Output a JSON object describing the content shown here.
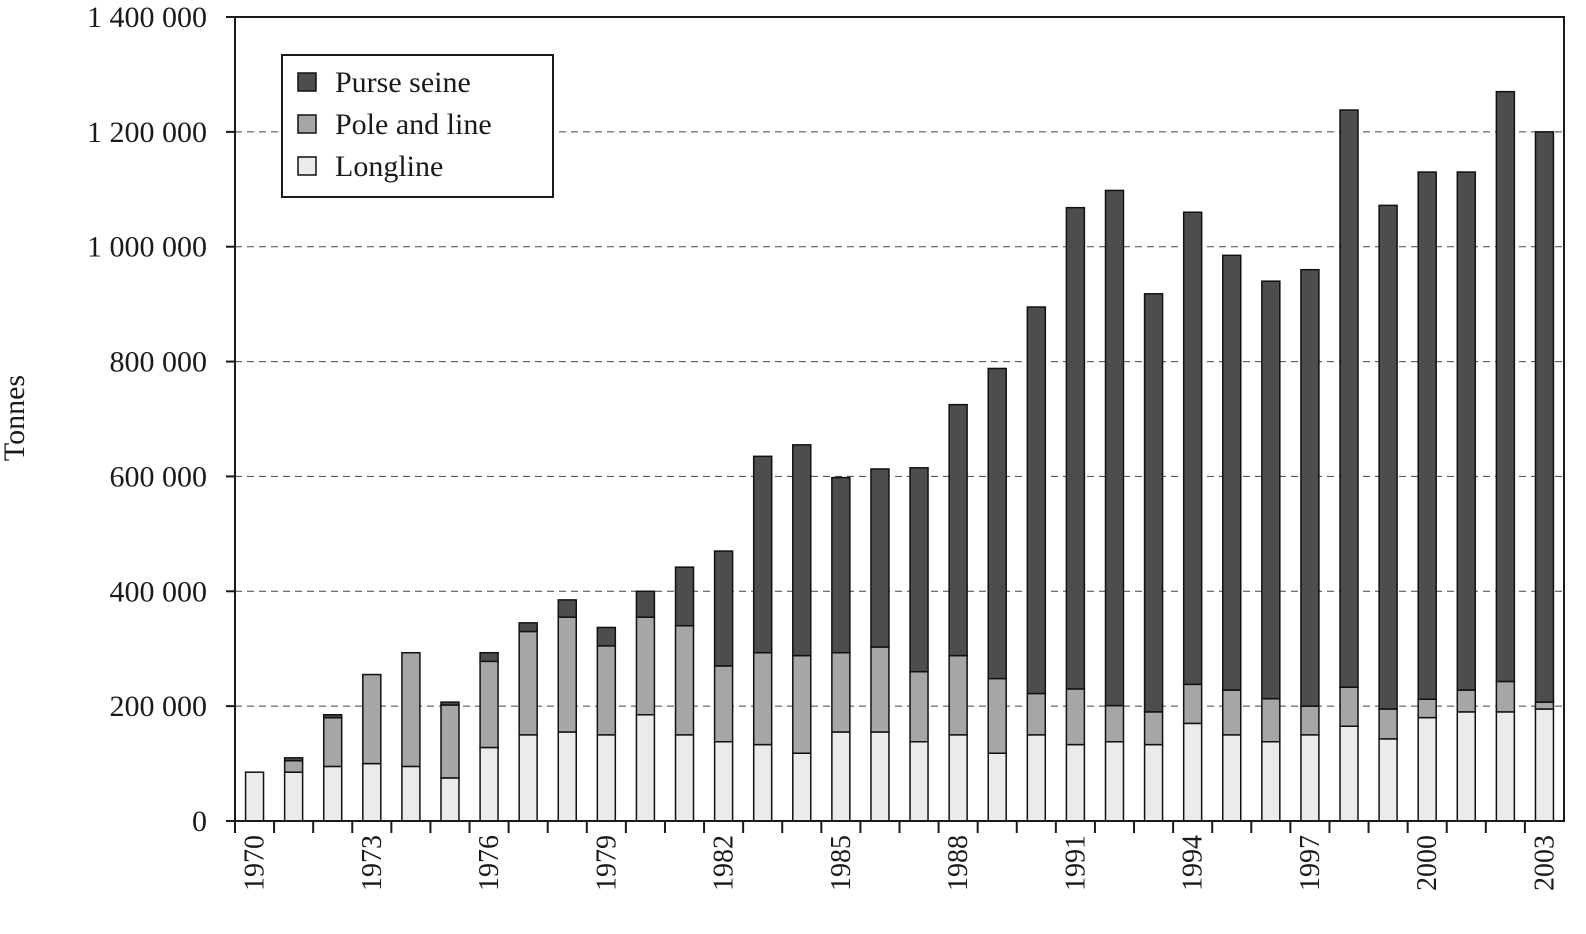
{
  "chart_data": {
    "type": "bar",
    "stacked": true,
    "title": "",
    "xlabel": "",
    "ylabel": "Tonnes",
    "ylim": [
      0,
      1400000
    ],
    "yticks": [
      0,
      200000,
      400000,
      600000,
      800000,
      1000000,
      1200000,
      1400000
    ],
    "ytick_labels": [
      "0",
      "200 000",
      "400 000",
      "600 000",
      "800 000",
      "1 000 000",
      "1 200 000",
      "1 400 000"
    ],
    "xtick_labels": [
      "1970",
      "1973",
      "1976",
      "1979",
      "1982",
      "1985",
      "1988",
      "1991",
      "1994",
      "1997",
      "2000",
      "2003"
    ],
    "grid": "horizontal dashed",
    "legend_position": "top-left",
    "categories": [
      "1970",
      "1971",
      "1972",
      "1973",
      "1974",
      "1975",
      "1976",
      "1977",
      "1978",
      "1979",
      "1980",
      "1981",
      "1982",
      "1983",
      "1984",
      "1985",
      "1986",
      "1987",
      "1988",
      "1989",
      "1990",
      "1991",
      "1992",
      "1993",
      "1994",
      "1995",
      "1996",
      "1997",
      "1998",
      "1999",
      "2000",
      "2001",
      "2002",
      "2003"
    ],
    "series": [
      {
        "name": "Longline",
        "color": "#ebebeb",
        "values": [
          85000,
          85000,
          95000,
          100000,
          95000,
          75000,
          128000,
          150000,
          155000,
          150000,
          185000,
          150000,
          138000,
          133000,
          118000,
          155000,
          155000,
          138000,
          150000,
          118000,
          150000,
          133000,
          138000,
          133000,
          170000,
          150000,
          138000,
          150000,
          165000,
          143000,
          180000,
          190000,
          190000,
          195000
        ]
      },
      {
        "name": "Pole and line",
        "color": "#a6a6a6",
        "values": [
          0,
          20000,
          85000,
          155000,
          198000,
          127000,
          150000,
          180000,
          200000,
          155000,
          170000,
          190000,
          132000,
          160000,
          170000,
          138000,
          148000,
          122000,
          138000,
          130000,
          72000,
          97000,
          63000,
          57000,
          68000,
          78000,
          75000,
          50000,
          68000,
          52000,
          32000,
          38000,
          53000,
          12000
        ]
      },
      {
        "name": "Purse seine",
        "color": "#4d4d4d",
        "values": [
          0,
          5000,
          5000,
          0,
          0,
          5000,
          15000,
          15000,
          30000,
          32000,
          45000,
          102000,
          200000,
          342000,
          367000,
          305000,
          310000,
          355000,
          437000,
          540000,
          673000,
          838000,
          897000,
          728000,
          822000,
          757000,
          727000,
          760000,
          1005000,
          877000,
          918000,
          902000,
          1027000,
          993000
        ]
      }
    ]
  }
}
